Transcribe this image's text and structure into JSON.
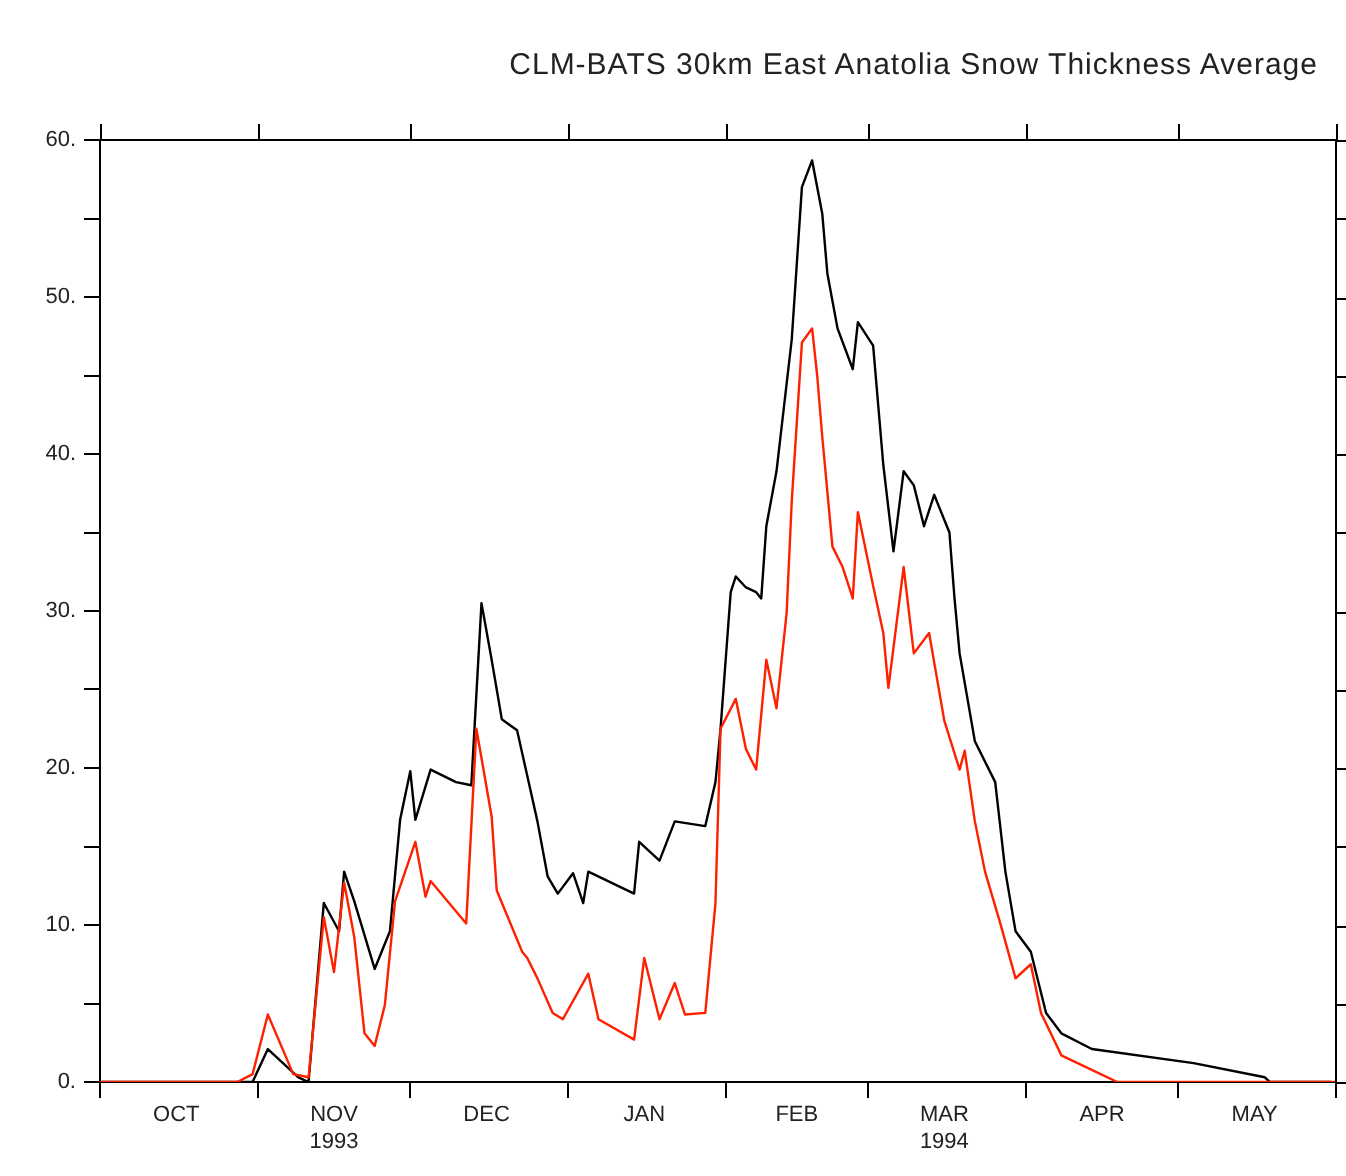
{
  "chart_data": {
    "type": "line",
    "title": "CLM-BATS 30km East Anatolia Snow Thickness Average",
    "xlim": [
      "1993-10-01",
      "1994-06-01"
    ],
    "xticks": [
      {
        "value": "1993-10-01",
        "label": null
      },
      {
        "value": "1993-10-16",
        "label": "OCT"
      },
      {
        "value": "1993-11-01",
        "label": null
      },
      {
        "value": "1993-11-16",
        "label": "NOV\n1993"
      },
      {
        "value": "1993-12-01",
        "label": null
      },
      {
        "value": "1993-12-16",
        "label": "DEC"
      },
      {
        "value": "1994-01-01",
        "label": null
      },
      {
        "value": "1994-01-16",
        "label": "JAN"
      },
      {
        "value": "1994-02-01",
        "label": null
      },
      {
        "value": "1994-02-15",
        "label": "FEB"
      },
      {
        "value": "1994-03-01",
        "label": null
      },
      {
        "value": "1994-03-16",
        "label": "MAR\n1994"
      },
      {
        "value": "1994-04-01",
        "label": null
      },
      {
        "value": "1994-04-16",
        "label": "APR"
      },
      {
        "value": "1994-05-01",
        "label": null
      },
      {
        "value": "1994-05-16",
        "label": "MAY"
      },
      {
        "value": "1994-06-01",
        "label": null
      }
    ],
    "ylim": [
      0,
      60
    ],
    "yticks": [
      {
        "value": 0,
        "label": "0."
      },
      {
        "value": 5,
        "label": null
      },
      {
        "value": 10,
        "label": "10."
      },
      {
        "value": 15,
        "label": null
      },
      {
        "value": 20,
        "label": "20."
      },
      {
        "value": 25,
        "label": null
      },
      {
        "value": 30,
        "label": "30."
      },
      {
        "value": 35,
        "label": null
      },
      {
        "value": 40,
        "label": "40."
      },
      {
        "value": 45,
        "label": null
      },
      {
        "value": 50,
        "label": "50."
      },
      {
        "value": 55,
        "label": null
      },
      {
        "value": 60,
        "label": "60."
      }
    ],
    "grid": false,
    "series": [
      {
        "color": "#000000",
        "x": [
          "1993-10-01",
          "1993-10-28",
          "1993-10-31",
          "1993-11-03",
          "1993-11-09",
          "1993-11-11",
          "1993-11-14",
          "1993-11-17",
          "1993-11-18",
          "1993-11-20",
          "1993-11-24",
          "1993-11-27",
          "1993-11-29",
          "1993-12-01",
          "1993-12-02",
          "1993-12-05",
          "1993-12-10",
          "1993-12-13",
          "1993-12-15",
          "1993-12-17",
          "1993-12-19",
          "1993-12-22",
          "1993-12-24",
          "1993-12-26",
          "1993-12-28",
          "1993-12-30",
          "1994-01-02",
          "1994-01-04",
          "1994-01-05",
          "1994-01-14",
          "1994-01-15",
          "1994-01-19",
          "1994-01-22",
          "1994-01-28",
          "1994-01-30",
          "1994-01-31",
          "1994-02-02",
          "1994-02-03",
          "1994-02-05",
          "1994-02-07",
          "1994-02-08",
          "1994-02-09",
          "1994-02-11",
          "1994-02-14",
          "1994-02-16",
          "1994-02-18",
          "1994-02-20",
          "1994-02-21",
          "1994-02-23",
          "1994-02-26",
          "1994-02-27",
          "1994-03-02",
          "1994-03-04",
          "1994-03-06",
          "1994-03-08",
          "1994-03-10",
          "1994-03-12",
          "1994-03-14",
          "1994-03-17",
          "1994-03-18",
          "1994-03-19",
          "1994-03-22",
          "1994-03-26",
          "1994-03-28",
          "1994-03-30",
          "1994-04-02",
          "1994-04-05",
          "1994-04-08",
          "1994-04-14",
          "1994-05-04",
          "1994-05-18",
          "1994-05-19",
          "1994-05-31"
        ],
        "values": [
          0,
          0,
          0,
          2.1,
          0.3,
          0,
          11.4,
          9.6,
          13.4,
          11.5,
          7.2,
          9.6,
          16.7,
          19.8,
          16.7,
          19.9,
          19.1,
          18.9,
          30.5,
          26.9,
          23.1,
          22.4,
          19.5,
          16.6,
          13.1,
          12.0,
          13.3,
          11.4,
          13.4,
          12.0,
          15.3,
          14.1,
          16.6,
          16.3,
          19.1,
          22.5,
          31.2,
          32.2,
          31.5,
          31.2,
          30.8,
          35.4,
          38.9,
          47.3,
          57.0,
          58.7,
          55.3,
          51.5,
          48.0,
          45.4,
          48.4,
          46.9,
          39.3,
          33.8,
          38.9,
          38.0,
          35.4,
          37.4,
          35.0,
          30.8,
          27.3,
          21.7,
          19.1,
          13.4,
          9.6,
          8.3,
          4.4,
          3.1,
          2.1,
          1.2,
          0.3,
          0,
          0
        ]
      },
      {
        "color": "#ff2000",
        "x": [
          "1993-10-01",
          "1993-10-28",
          "1993-10-31",
          "1993-11-03",
          "1993-11-08",
          "1993-11-11",
          "1993-11-14",
          "1993-11-16",
          "1993-11-18",
          "1993-11-20",
          "1993-11-22",
          "1993-11-24",
          "1993-11-26",
          "1993-11-28",
          "1993-12-02",
          "1993-12-04",
          "1993-12-05",
          "1993-12-12",
          "1993-12-14",
          "1993-12-17",
          "1993-12-18",
          "1993-12-23",
          "1993-12-24",
          "1993-12-26",
          "1993-12-29",
          "1993-12-31",
          "1994-01-05",
          "1994-01-07",
          "1994-01-14",
          "1994-01-16",
          "1994-01-19",
          "1994-01-22",
          "1994-01-24",
          "1994-01-28",
          "1994-01-30",
          "1994-01-31",
          "1994-02-03",
          "1994-02-05",
          "1994-02-07",
          "1994-02-09",
          "1994-02-11",
          "1994-02-13",
          "1994-02-14",
          "1994-02-16",
          "1994-02-18",
          "1994-02-19",
          "1994-02-20",
          "1994-02-22",
          "1994-02-24",
          "1994-02-26",
          "1994-02-27",
          "1994-03-02",
          "1994-03-04",
          "1994-03-05",
          "1994-03-08",
          "1994-03-10",
          "1994-03-13",
          "1994-03-16",
          "1994-03-19",
          "1994-03-20",
          "1994-03-22",
          "1994-03-24",
          "1994-03-27",
          "1994-03-30",
          "1994-04-02",
          "1994-04-04",
          "1994-04-08",
          "1994-04-19",
          "1994-06-01"
        ],
        "values": [
          0,
          0,
          0.5,
          4.3,
          0.5,
          0.3,
          10.5,
          7.0,
          12.7,
          9.2,
          3.1,
          2.3,
          4.9,
          11.5,
          15.3,
          11.8,
          12.8,
          10.1,
          22.5,
          16.9,
          12.2,
          8.3,
          7.9,
          6.6,
          4.4,
          4.0,
          6.9,
          4.0,
          2.7,
          7.9,
          4.0,
          6.3,
          4.3,
          4.4,
          11.4,
          22.5,
          24.4,
          21.2,
          19.9,
          26.9,
          23.8,
          29.9,
          37.0,
          47.1,
          48.0,
          45.0,
          41.1,
          34.1,
          32.8,
          30.8,
          36.3,
          31.6,
          28.6,
          25.1,
          32.8,
          27.3,
          28.6,
          23.0,
          19.9,
          21.1,
          16.6,
          13.4,
          10.1,
          6.6,
          7.5,
          4.4,
          1.7,
          0,
          0
        ]
      }
    ]
  }
}
